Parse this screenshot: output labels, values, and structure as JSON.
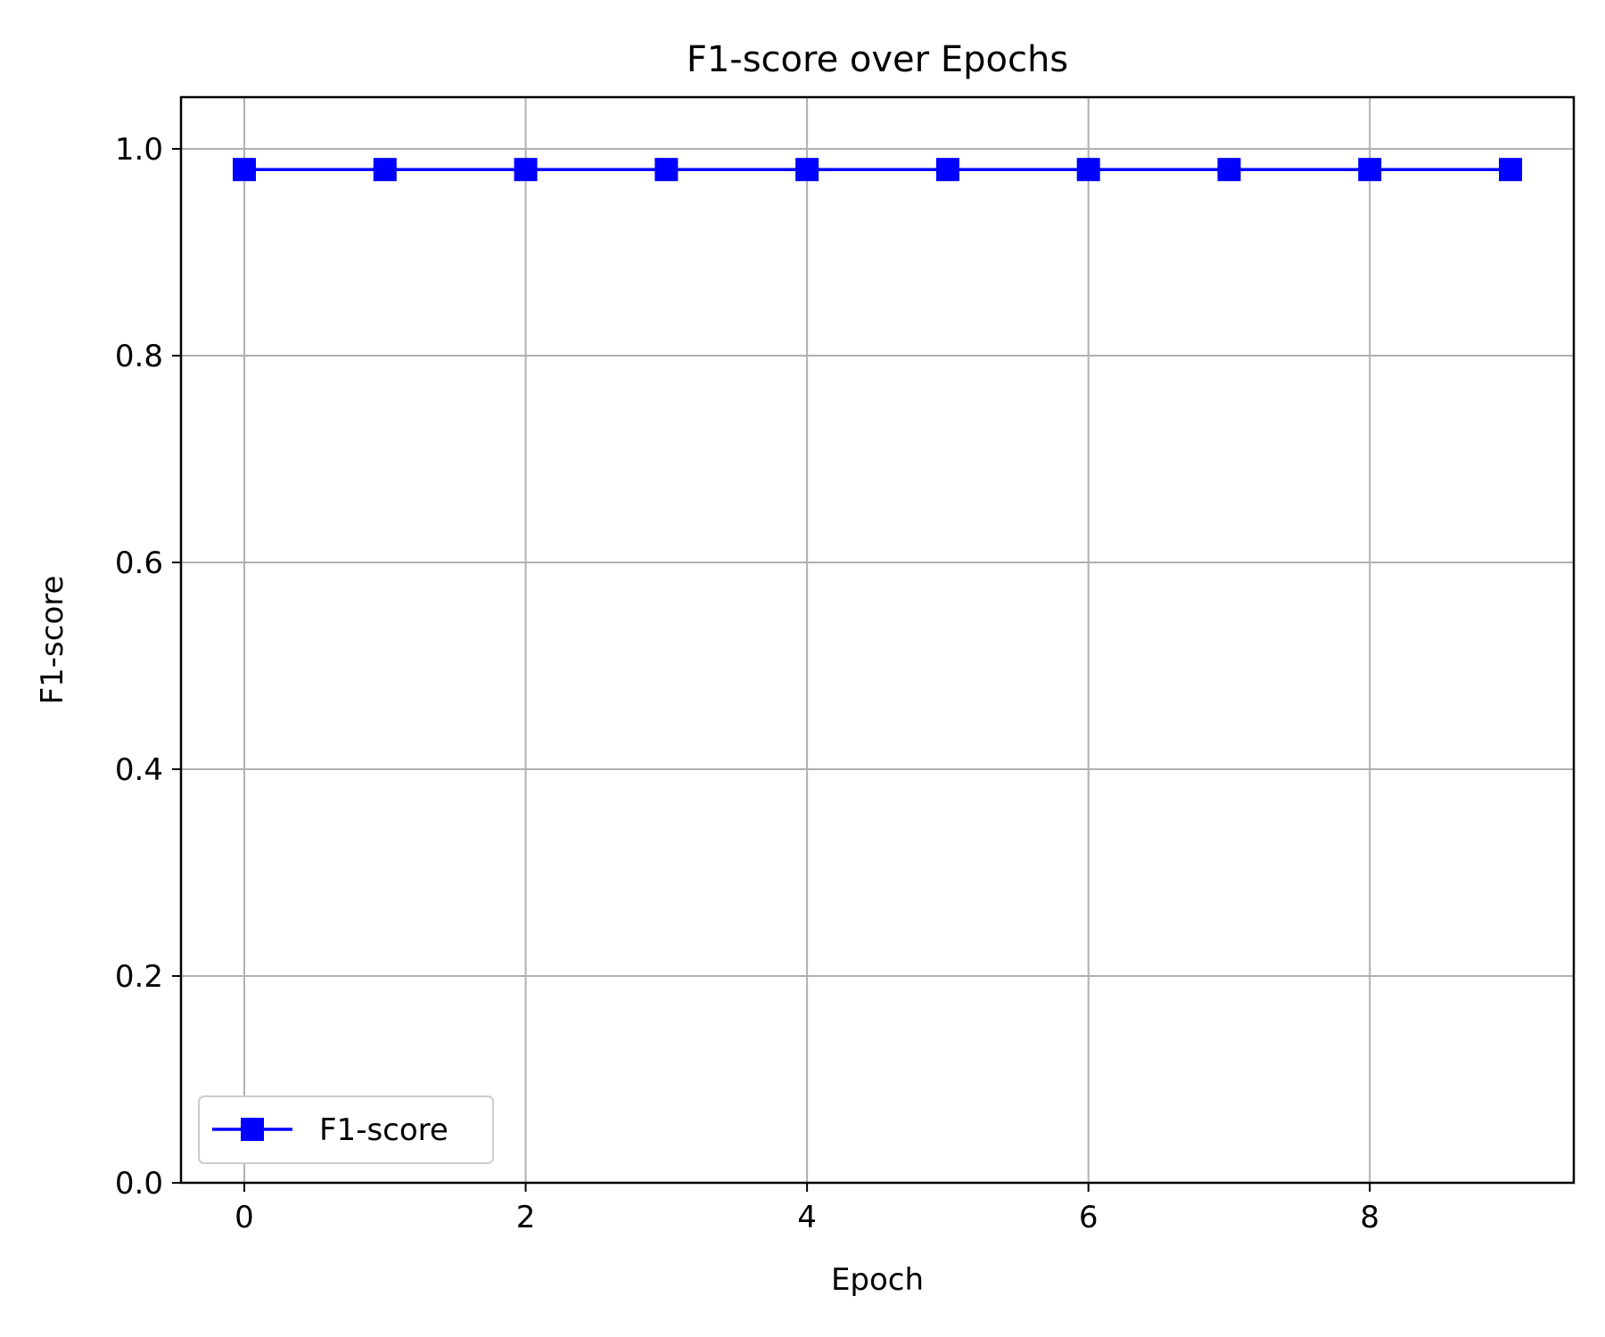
{
  "chart_data": {
    "type": "line",
    "title": "F1-score over Epochs",
    "xlabel": "Epoch",
    "ylabel": "F1-score",
    "xlim": [
      -0.45,
      9.45
    ],
    "ylim": [
      0,
      1.05
    ],
    "x_ticks": [
      0,
      2,
      4,
      6,
      8
    ],
    "x_tick_labels": [
      "0",
      "2",
      "4",
      "6",
      "8"
    ],
    "y_ticks": [
      0,
      0.2,
      0.4,
      0.6,
      0.8,
      1.0
    ],
    "y_tick_labels": [
      "0.0",
      "0.2",
      "0.4",
      "0.6",
      "0.8",
      "1.0"
    ],
    "grid": true,
    "legend_position": "lower-left",
    "series": [
      {
        "name": "F1-score",
        "color": "#0000ff",
        "marker": "square",
        "x": [
          0,
          1,
          2,
          3,
          4,
          5,
          6,
          7,
          8,
          9
        ],
        "y": [
          0.98,
          0.98,
          0.98,
          0.98,
          0.98,
          0.98,
          0.98,
          0.98,
          0.98,
          0.98
        ]
      }
    ]
  }
}
